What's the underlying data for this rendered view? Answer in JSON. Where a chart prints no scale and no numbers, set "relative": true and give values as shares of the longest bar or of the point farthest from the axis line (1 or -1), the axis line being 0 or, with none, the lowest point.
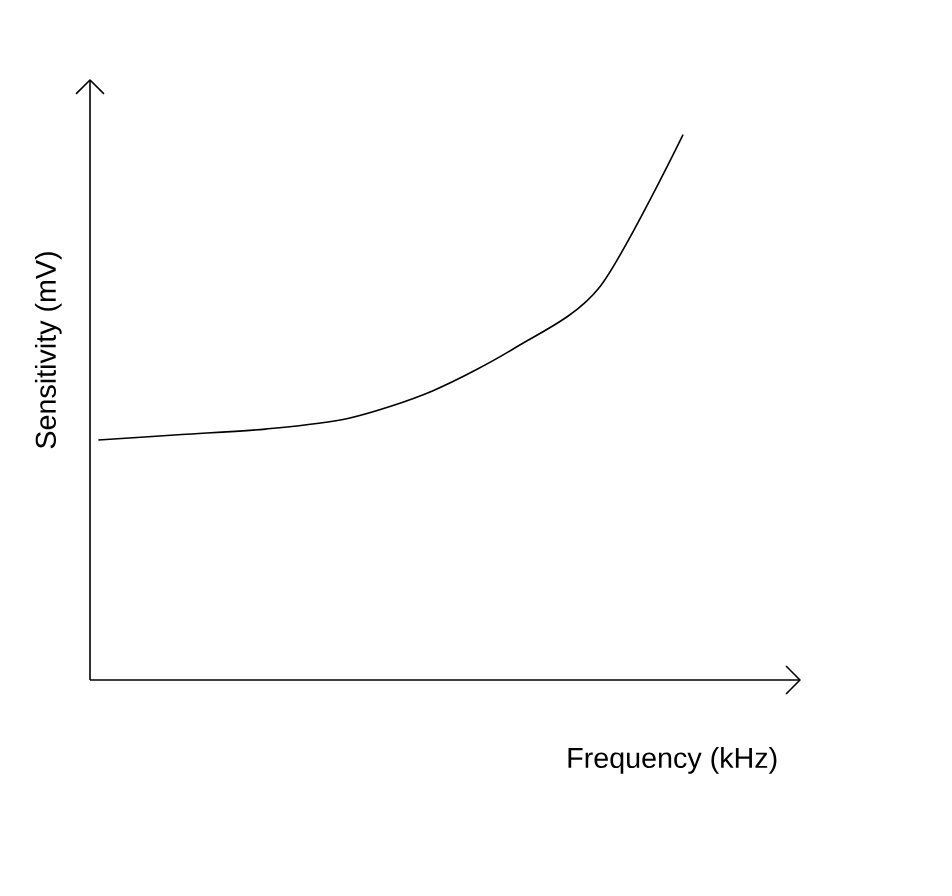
{
  "chart_data": {
    "type": "line",
    "relative": true,
    "xlabel": "Frequency (kHz)",
    "ylabel": "Sensitivity (mV)",
    "color": "#000000",
    "categories": [
      null,
      null,
      null,
      null,
      null,
      null,
      null,
      null
    ],
    "values": [
      0.44,
      0.45,
      0.46,
      0.48,
      0.53,
      0.61,
      0.72,
      1.0
    ]
  }
}
